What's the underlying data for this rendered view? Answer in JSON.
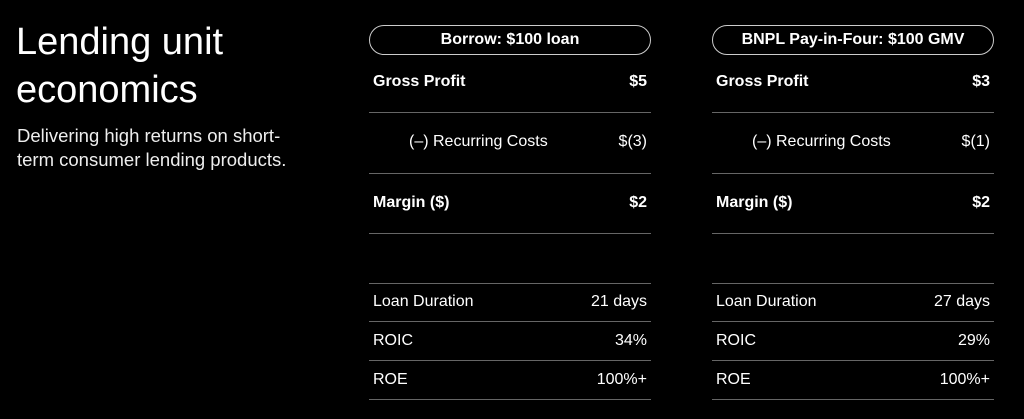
{
  "title": "Lending unit economics",
  "subtitle": "Delivering high returns on short-term consumer lending products.",
  "columns": [
    {
      "header": "Borrow: $100 loan",
      "gross_profit_label": "Gross Profit",
      "gross_profit": "$5",
      "costs_label": "(–) Recurring Costs",
      "costs": "$(3)",
      "margin_label": "Margin ($)",
      "margin": "$2",
      "duration_label": "Loan Duration",
      "duration": "21 days",
      "roic_label": "ROIC",
      "roic": "34%",
      "roe_label": "ROE",
      "roe": "100%+"
    },
    {
      "header": "BNPL Pay-in-Four: $100 GMV",
      "gross_profit_label": "Gross Profit",
      "gross_profit": "$3",
      "costs_label": "(–) Recurring Costs",
      "costs": "$(1)",
      "margin_label": "Margin ($)",
      "margin": "$2",
      "duration_label": "Loan Duration",
      "duration": "27 days",
      "roic_label": "ROIC",
      "roic": "29%",
      "roe_label": "ROE",
      "roe": "100%+"
    }
  ]
}
